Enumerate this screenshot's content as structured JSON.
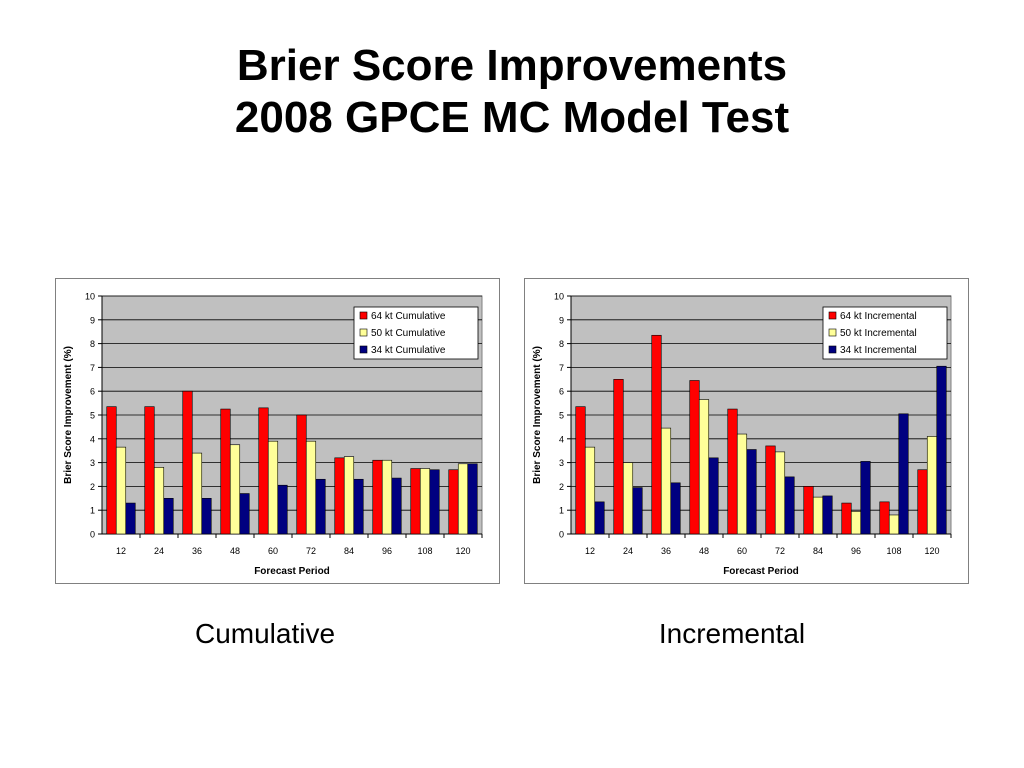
{
  "slide": {
    "title_line1": "Brier Score Improvements",
    "title_line2": "2008 GPCE MC Model Test",
    "caption_left": "Cumulative",
    "caption_right": "Incremental"
  },
  "colors": {
    "series": [
      "#ff0000",
      "#ffff99",
      "#000080"
    ],
    "plot_bg": "#c0c0c0",
    "gridline": "#000000"
  },
  "chart_data": [
    {
      "type": "bar",
      "categories": [
        "12",
        "24",
        "36",
        "48",
        "60",
        "72",
        "84",
        "96",
        "108",
        "120"
      ],
      "series": [
        {
          "name": "64 kt Cumulative",
          "values": [
            5.35,
            5.35,
            6.0,
            5.25,
            5.3,
            5.0,
            3.2,
            3.1,
            2.75,
            2.7
          ]
        },
        {
          "name": "50 kt Cumulative",
          "values": [
            3.65,
            2.8,
            3.4,
            3.75,
            3.9,
            3.9,
            3.25,
            3.1,
            2.75,
            2.95
          ]
        },
        {
          "name": "34 kt Cumulative",
          "values": [
            1.3,
            1.5,
            1.5,
            1.7,
            2.05,
            2.3,
            2.3,
            2.35,
            2.7,
            2.95
          ]
        }
      ],
      "xlabel": "Forecast Period",
      "ylabel": "Brier Score Improvement (%)",
      "ylim": [
        0,
        10
      ],
      "yticks": [
        "0",
        "1",
        "2",
        "3",
        "4",
        "5",
        "6",
        "7",
        "8",
        "9",
        "10"
      ],
      "grid": true,
      "legend": "top-right"
    },
    {
      "type": "bar",
      "categories": [
        "12",
        "24",
        "36",
        "48",
        "60",
        "72",
        "84",
        "96",
        "108",
        "120"
      ],
      "series": [
        {
          "name": "64 kt Incremental",
          "values": [
            5.35,
            6.5,
            8.35,
            6.45,
            5.25,
            3.7,
            2.0,
            1.3,
            1.35,
            2.7
          ]
        },
        {
          "name": "50 kt Incremental",
          "values": [
            3.65,
            3.0,
            4.45,
            5.65,
            4.2,
            3.45,
            1.55,
            0.95,
            0.8,
            4.1
          ]
        },
        {
          "name": "34 kt Incremental",
          "values": [
            1.35,
            1.95,
            2.15,
            3.2,
            3.55,
            2.4,
            1.6,
            3.05,
            5.05,
            7.05
          ]
        }
      ],
      "xlabel": "Forecast Period",
      "ylabel": "Brier Score Improvement (%)",
      "ylim": [
        0,
        10
      ],
      "yticks": [
        "0",
        "1",
        "2",
        "3",
        "4",
        "5",
        "6",
        "7",
        "8",
        "9",
        "10"
      ],
      "grid": true,
      "legend": "top-right"
    }
  ]
}
